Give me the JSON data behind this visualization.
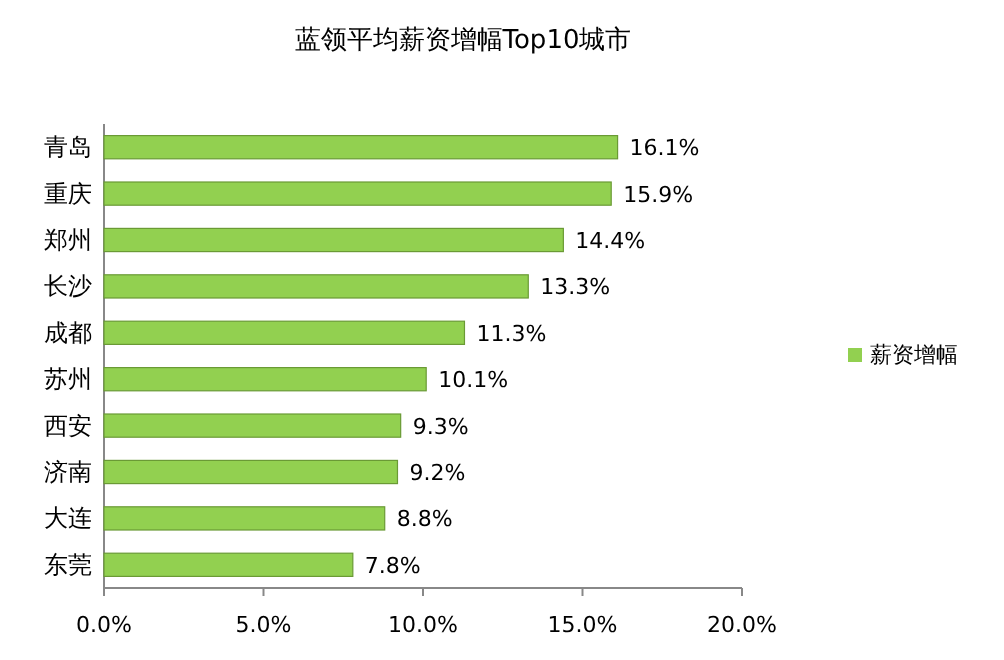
{
  "chart_data": {
    "type": "bar",
    "orientation": "horizontal",
    "title": "蓝领平均薪资增幅Top10城市",
    "categories": [
      "青岛",
      "重庆",
      "郑州",
      "长沙",
      "成都",
      "苏州",
      "西安",
      "济南",
      "大连",
      "东莞"
    ],
    "series": [
      {
        "name": "薪资增幅",
        "color": "#92d050",
        "values": [
          16.1,
          15.9,
          14.4,
          13.3,
          11.3,
          10.1,
          9.3,
          9.2,
          8.8,
          7.8
        ],
        "value_labels": [
          "16.1%",
          "15.9%",
          "14.4%",
          "13.3%",
          "11.3%",
          "10.1%",
          "9.3%",
          "9.2%",
          "8.8%",
          "7.8%"
        ]
      }
    ],
    "xlim": [
      0,
      20
    ],
    "xticks": [
      {
        "value": 0,
        "label": "0.0%"
      },
      {
        "value": 5,
        "label": "5.0%"
      },
      {
        "value": 10,
        "label": "10.0%"
      },
      {
        "value": 15,
        "label": "15.0%"
      },
      {
        "value": 20,
        "label": "20.0%"
      }
    ],
    "legend": "right"
  }
}
